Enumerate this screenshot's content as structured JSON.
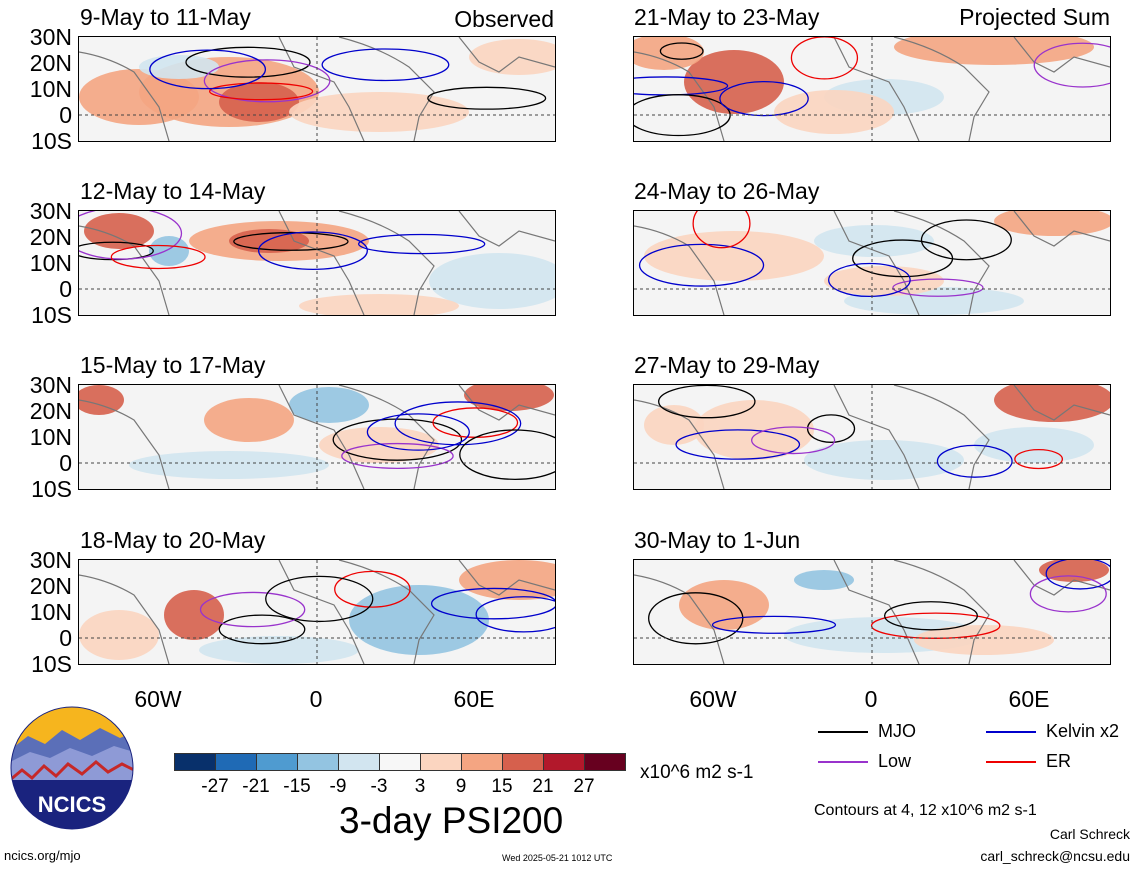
{
  "section_labels": {
    "left": "Observed",
    "right": "Projected Sum"
  },
  "panels": [
    {
      "title": "9-May to 11-May"
    },
    {
      "title": "12-May to 14-May"
    },
    {
      "title": "15-May to 17-May"
    },
    {
      "title": "18-May to 20-May"
    },
    {
      "title": "21-May to 23-May"
    },
    {
      "title": "24-May to 26-May"
    },
    {
      "title": "27-May to 29-May"
    },
    {
      "title": "30-May to 1-Jun"
    }
  ],
  "lat_labels": [
    "30N",
    "20N",
    "10N",
    "0",
    "10S"
  ],
  "lon_labels": [
    "60W",
    "0",
    "60E"
  ],
  "colorbar": {
    "colors": [
      "#08306b",
      "#1f6ab5",
      "#4f9bd0",
      "#93c4e1",
      "#d2e5f0",
      "#f7f7f7",
      "#fbd5c0",
      "#f4a582",
      "#d6604d",
      "#b2182b",
      "#67001f"
    ],
    "ticks": [
      "-27",
      "-21",
      "-15",
      "-9",
      "-3",
      "3",
      "9",
      "15",
      "21",
      "27"
    ],
    "units": "x10^6 m2 s-1"
  },
  "title": "3-day PSI200",
  "legend": [
    {
      "label": "MJO",
      "color": "#000000"
    },
    {
      "label": "Kelvin x2",
      "color": "#0000cc"
    },
    {
      "label": "Low",
      "color": "#9933cc"
    },
    {
      "label": "ER",
      "color": "#ee0000"
    }
  ],
  "contour_note": "Contours at 4, 12 x10^6 m2 s-1",
  "author": "Carl Schreck",
  "email": "carl_schreck@ncsu.edu",
  "site": "ncics.org/mjo",
  "timestamp": "Wed 2025-05-21 1012 UTC",
  "logo_text": "NCICS"
}
